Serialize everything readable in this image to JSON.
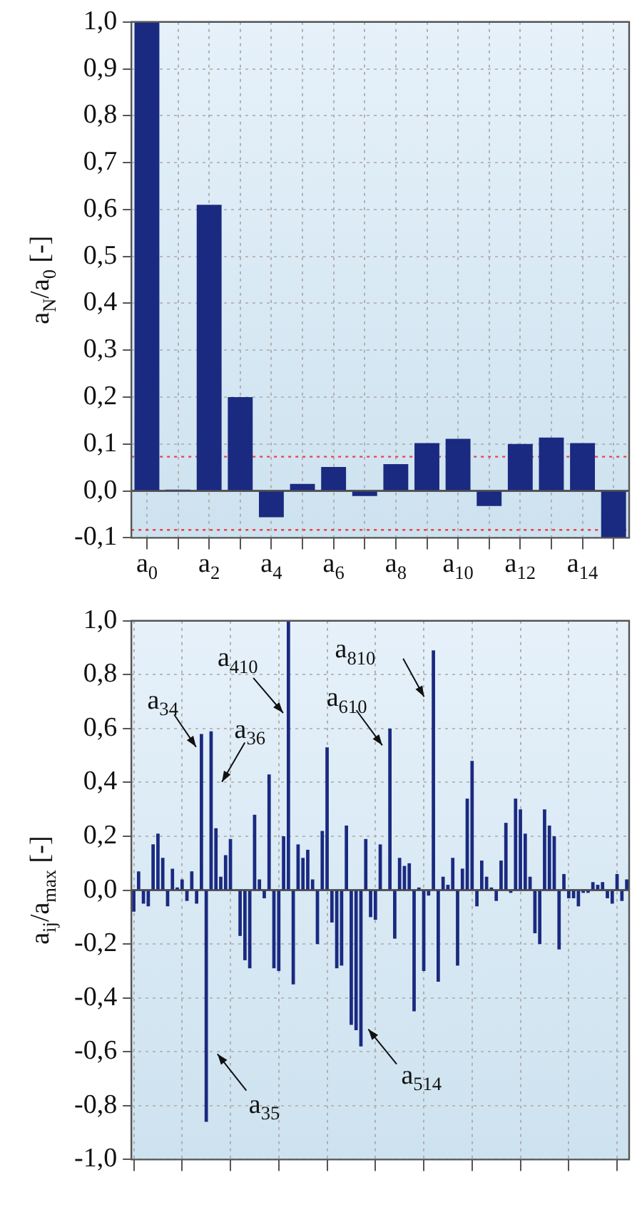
{
  "chart_data": [
    {
      "type": "bar",
      "ylabel": "a$_{N}$/a$_{0}$ [-]",
      "categories": [
        "a$_{0}$",
        null,
        "a$_{2}$",
        null,
        "a$_{4}$",
        null,
        "a$_{6}$",
        null,
        "a$_{8}$",
        null,
        "a$_{10}$",
        null,
        "a$_{12}$",
        null,
        "a$_{14}$",
        null
      ],
      "values": [
        1.0,
        0.003,
        0.61,
        0.2,
        -0.056,
        0.015,
        0.051,
        -0.011,
        0.057,
        0.102,
        0.111,
        -0.032,
        0.1,
        0.114,
        0.102,
        -0.1
      ],
      "color": "#1a2a80",
      "ylim": [
        -0.1,
        1.0
      ],
      "yticks": [
        {
          "value": -0.1,
          "label": "-0,1"
        },
        {
          "value": 0,
          "label": "0,0"
        },
        {
          "value": 0.1,
          "label": "0,1"
        },
        {
          "value": 0.2,
          "label": "0,2"
        },
        {
          "value": 0.3,
          "label": "0,3"
        },
        {
          "value": 0.4,
          "label": "0,4"
        },
        {
          "value": 0.5,
          "label": "0,5"
        },
        {
          "value": 0.6,
          "label": "0,6"
        },
        {
          "value": 0.7,
          "label": "0,7"
        },
        {
          "value": 0.8,
          "label": "0,8"
        },
        {
          "value": 0.9,
          "label": "0,9"
        },
        {
          "value": 1.0,
          "label": "1,0"
        }
      ],
      "ref_lines": [
        {
          "axis": "y",
          "value": 0.073,
          "color": "#e8404a",
          "line_style": "dotted"
        },
        {
          "axis": "y",
          "value": -0.083,
          "color": "#e8404a",
          "line_style": "dotted"
        }
      ],
      "grid": true,
      "legend": false
    },
    {
      "type": "bar",
      "ylabel": "a$_{ij}$/a$_{max}$ [-]",
      "categories": [
        null,
        null,
        null,
        null,
        null,
        null,
        null,
        null,
        null,
        null,
        null,
        null,
        null,
        null,
        null,
        null,
        null,
        null,
        null,
        null,
        null,
        null,
        null,
        null,
        null,
        null,
        null,
        null,
        null,
        null,
        null,
        null,
        null,
        null,
        null,
        null,
        null,
        null,
        null,
        null,
        null,
        null,
        null,
        null,
        null,
        null,
        null,
        null,
        null,
        null,
        null,
        null,
        null,
        null,
        null,
        null,
        null,
        null,
        null,
        null,
        null,
        null,
        null,
        null,
        null,
        null,
        null,
        null,
        null,
        null,
        null,
        null,
        null,
        null,
        null,
        null,
        null,
        null,
        null,
        null,
        null,
        null,
        null,
        null,
        null,
        null,
        null,
        null,
        null,
        null,
        null,
        null,
        null,
        null,
        null,
        null,
        null,
        null,
        null,
        null,
        null,
        null,
        null
      ],
      "values": [
        -0.08,
        0.07,
        -0.05,
        -0.06,
        0.17,
        0.21,
        0.12,
        -0.06,
        0.08,
        0.01,
        0.04,
        -0.04,
        0.07,
        -0.05,
        0.58,
        -0.86,
        0.59,
        0.23,
        0.05,
        0.13,
        0.19,
        0,
        -0.17,
        -0.26,
        -0.29,
        0.28,
        0.04,
        -0.03,
        0.43,
        -0.29,
        -0.3,
        0.2,
        1.0,
        -0.35,
        0.17,
        0.12,
        0.15,
        0.04,
        -0.2,
        0.22,
        0.53,
        -0.12,
        -0.29,
        -0.28,
        0.24,
        -0.5,
        -0.52,
        -0.58,
        0.19,
        -0.1,
        -0.11,
        0.17,
        0,
        0.6,
        -0.18,
        0.12,
        0.09,
        0.1,
        -0.45,
        0.01,
        -0.3,
        -0.02,
        0.89,
        -0.34,
        0.05,
        0.02,
        0.12,
        -0.28,
        0.08,
        0.34,
        0.48,
        -0.06,
        0.11,
        0.05,
        0.01,
        -0.04,
        0.11,
        0.25,
        -0.01,
        0.34,
        0.3,
        0.21,
        0.05,
        -0.16,
        -0.2,
        0.3,
        0.24,
        0.2,
        -0.22,
        0.06,
        -0.03,
        -0.03,
        -0.06,
        -0.01,
        -0.01,
        0.03,
        0.02,
        0.03,
        -0.03,
        -0.05,
        0.06,
        -0.04,
        0.04
      ],
      "color": "#1a2a80",
      "ylim": [
        -1.0,
        1.0
      ],
      "yticks": [
        {
          "value": -1.0,
          "label": "-1,0"
        },
        {
          "value": -0.8,
          "label": "-0,8"
        },
        {
          "value": -0.6,
          "label": "-0,6"
        },
        {
          "value": -0.4,
          "label": "-0,4"
        },
        {
          "value": -0.2,
          "label": "-0,2"
        },
        {
          "value": 0,
          "label": "0,0"
        },
        {
          "value": 0.2,
          "label": "0,2"
        },
        {
          "value": 0.4,
          "label": "0,4"
        },
        {
          "value": 0.6,
          "label": "0,6"
        },
        {
          "value": 0.8,
          "label": "0,8"
        },
        {
          "value": 1.0,
          "label": "1,0"
        }
      ],
      "annotations": [
        "a$_{34}$",
        "a$_{35}$",
        "a$_{36}$",
        "a$_{410}$",
        "a$_{514}$",
        "a$_{610}$",
        "a$_{810}$"
      ],
      "tick_labels": "y",
      "grid": true,
      "legend": false
    }
  ]
}
